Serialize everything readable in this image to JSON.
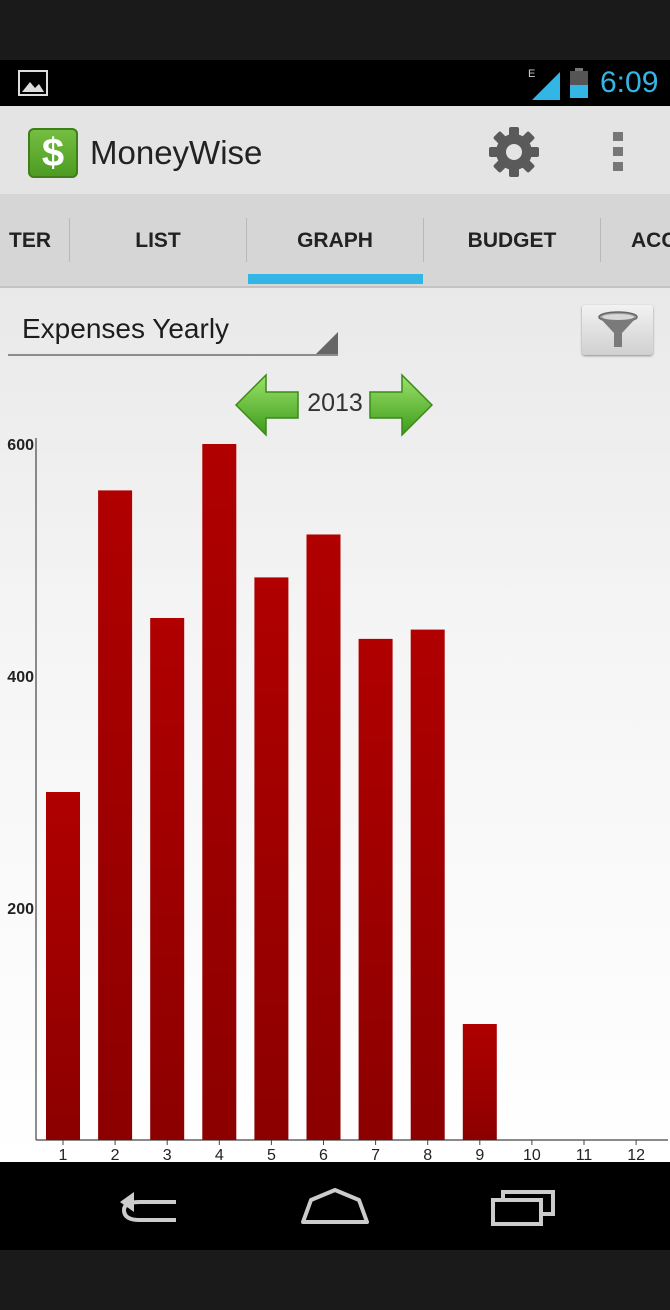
{
  "status_bar": {
    "time": "6:09",
    "network": "E",
    "icons": [
      "image-icon",
      "signal-icon",
      "battery-icon"
    ]
  },
  "app_bar": {
    "title": "MoneyWise",
    "logo_symbol": "$",
    "icons": [
      "settings-gear-icon",
      "overflow-menu-icon"
    ]
  },
  "tabs": [
    {
      "label": "TER"
    },
    {
      "label": "LIST"
    },
    {
      "label": "GRAPH",
      "selected": true
    },
    {
      "label": "BUDGET"
    },
    {
      "label": "ACC"
    }
  ],
  "report": {
    "selected": "Expenses Yearly"
  },
  "year_nav": {
    "year": "2013",
    "icons": [
      "arrow-left-icon",
      "arrow-right-icon"
    ]
  },
  "chart_data": {
    "type": "bar",
    "categories": [
      "1",
      "2",
      "3",
      "4",
      "5",
      "6",
      "7",
      "8",
      "9",
      "10",
      "11",
      "12"
    ],
    "values": [
      300,
      560,
      450,
      600,
      485,
      522,
      432,
      440,
      100,
      0,
      0,
      0
    ],
    "title": "",
    "xlabel": "",
    "ylabel": "",
    "ylim": [
      0,
      600
    ],
    "y_ticks": [
      200,
      400,
      600
    ],
    "grid": false,
    "bar_color": "#a50000"
  },
  "colors": {
    "accent": "#33b5e5",
    "bar": "#a50000",
    "logo": "#5fae2e",
    "arrow": "#5cb82e"
  }
}
